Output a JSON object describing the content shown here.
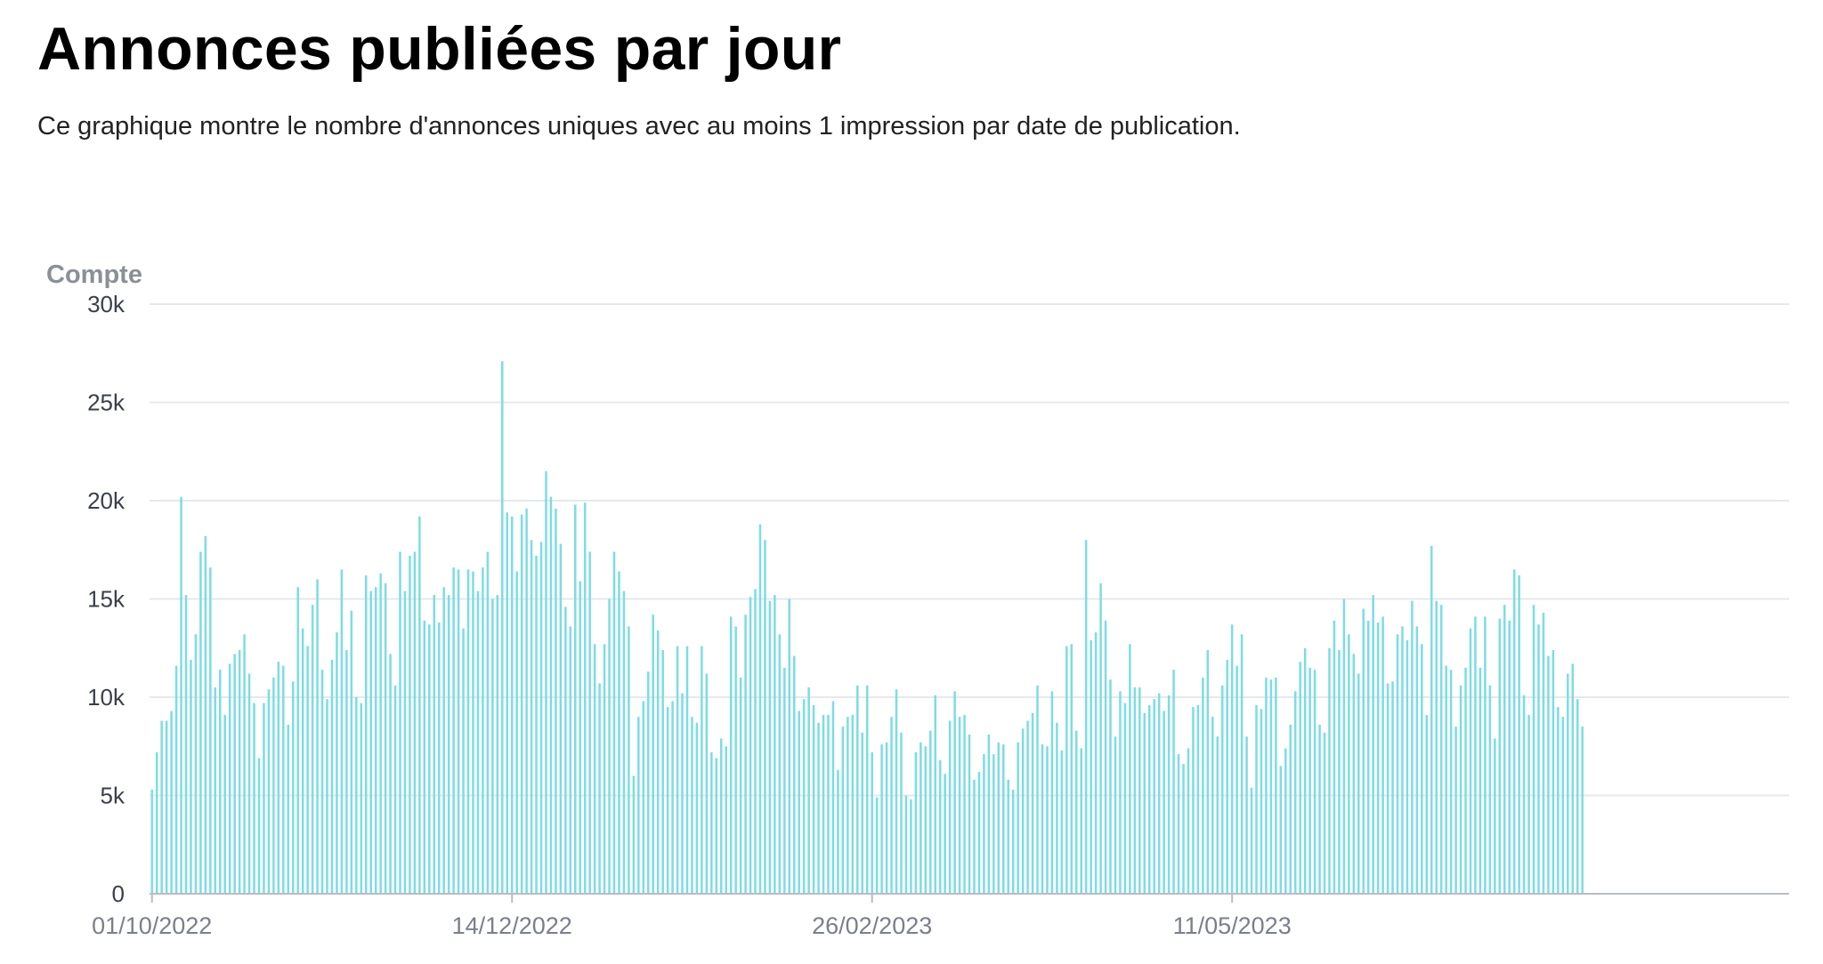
{
  "header": {
    "title": "Annonces publiées par jour",
    "subtitle": "Ce graphique montre le nombre d'annonces uniques avec au moins 1 impression par date de publication."
  },
  "colors": {
    "bar": "#7ddce4",
    "grid": "#e6e8ec",
    "title": "#000000"
  },
  "chart_data": {
    "type": "bar",
    "ylabel": "Compte",
    "ylim": [
      0,
      30000
    ],
    "yticks": [
      0,
      5000,
      10000,
      15000,
      20000,
      25000,
      30000
    ],
    "ytick_labels": [
      "0",
      "5k",
      "10k",
      "15k",
      "20k",
      "25k",
      "30k"
    ],
    "x_start": "01/10/2022",
    "x_end": "02/09/2023",
    "xtick_labels": [
      "01/10/2022",
      "14/12/2022",
      "26/02/2023",
      "11/05/2023"
    ],
    "grid": true,
    "values": [
      5300,
      7200,
      8800,
      8800,
      9300,
      11600,
      20200,
      15200,
      11900,
      13200,
      17400,
      18200,
      16600,
      10500,
      11400,
      9100,
      11700,
      12200,
      12400,
      13200,
      11200,
      9700,
      6900,
      9700,
      10400,
      11000,
      11800,
      11600,
      8600,
      10800,
      15600,
      13500,
      12600,
      14700,
      16000,
      11400,
      9900,
      11900,
      13300,
      16500,
      12400,
      14400,
      10000,
      9700,
      16200,
      15400,
      15600,
      16300,
      15800,
      12200,
      10600,
      17400,
      15400,
      17200,
      17400,
      19200,
      13900,
      13700,
      15200,
      13800,
      15600,
      15200,
      16600,
      16500,
      13500,
      16500,
      16400,
      15400,
      16600,
      17400,
      15000,
      15200,
      27100,
      19400,
      19200,
      16400,
      19300,
      19600,
      18000,
      17200,
      17900,
      21500,
      20200,
      19600,
      17800,
      14600,
      13600,
      19800,
      15900,
      19900,
      17400,
      12700,
      10700,
      12700,
      15000,
      17400,
      16400,
      15400,
      13600,
      6000,
      9000,
      9800,
      11300,
      14200,
      13400,
      12400,
      9500,
      9800,
      12600,
      10200,
      12600,
      9000,
      8700,
      12600,
      11200,
      7200,
      6900,
      7900,
      7500,
      14100,
      13600,
      11000,
      14200,
      15100,
      15500,
      18800,
      18000,
      14900,
      15200,
      13200,
      11500,
      15000,
      12100,
      9300,
      9900,
      10500,
      9600,
      8700,
      9100,
      9100,
      9800,
      6300,
      8500,
      9000,
      9100,
      10600,
      8200,
      10600,
      7200,
      4900,
      7600,
      7700,
      9000,
      10400,
      8200,
      5000,
      4800,
      7200,
      7700,
      7500,
      8300,
      10100,
      6800,
      6100,
      8800,
      10300,
      9000,
      9100,
      8100,
      5800,
      6200,
      7100,
      8100,
      7100,
      7700,
      7600,
      5800,
      5300,
      7700,
      8400,
      8800,
      9200,
      10600,
      7600,
      7500,
      10300,
      8700,
      7300,
      12600,
      12700,
      8300,
      7400,
      18000,
      12900,
      13300,
      15800,
      13900,
      10900,
      8000,
      10300,
      9700,
      12700,
      10500,
      10500,
      9200,
      9600,
      9900,
      10200,
      9300,
      10100,
      11400,
      7100,
      6600,
      7400,
      9500,
      9600,
      11000,
      12400,
      9000,
      8000,
      10600,
      11900,
      13700,
      11600,
      13200,
      8000,
      5400,
      9600,
      9400,
      11000,
      10900,
      11000,
      6500,
      7400,
      8600,
      10300,
      11800,
      12500,
      11500,
      11400,
      8600,
      8200,
      12500,
      13900,
      12400,
      15000,
      13200,
      12200,
      11200,
      14500,
      13900,
      15200,
      13800,
      14100,
      10700,
      10800,
      13200,
      13600,
      12900,
      14900,
      13600,
      12700,
      9100,
      17700,
      14900,
      14700,
      11600,
      11400,
      8500,
      10600,
      11500,
      13500,
      14100,
      11500,
      14100,
      10600,
      7900,
      14000,
      14700,
      13900,
      16500,
      16200,
      10100,
      9100,
      14700,
      13700,
      14300,
      12100,
      12400,
      9500,
      9000,
      11200,
      11700,
      9900,
      8500
    ]
  }
}
